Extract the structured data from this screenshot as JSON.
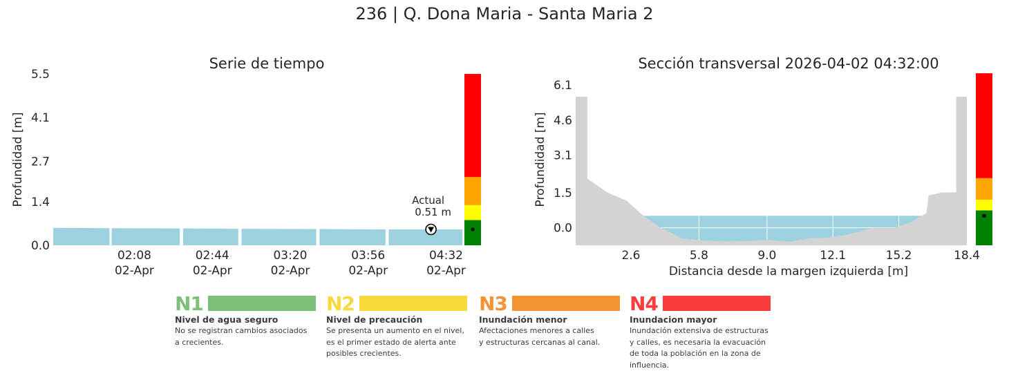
{
  "page_title": "236 | Q. Dona Maria - Santa Maria 2",
  "colors": {
    "water": "#9ed1e0",
    "ground": "#d3d3d3",
    "alert_red": "#ff0000",
    "alert_orange": "#ffa500",
    "alert_yellow": "#ffff00",
    "alert_green": "#008000"
  },
  "chart_data": [
    {
      "type": "area",
      "title": "Serie de tiempo",
      "ylabel": "Profundidad [m]",
      "xlabel": "",
      "ylim": [
        0,
        5.5
      ],
      "yticks": [
        "0.0",
        "1.4",
        "2.7",
        "4.1",
        "5.5"
      ],
      "ytick_values": [
        0.0,
        1.4,
        2.7,
        4.1,
        5.5
      ],
      "xlim_minutes": [
        90.5,
        279.5
      ],
      "xticks": [
        {
          "minute": 128,
          "time": "02:08",
          "date": "02-Apr"
        },
        {
          "minute": 164,
          "time": "02:44",
          "date": "02-Apr"
        },
        {
          "minute": 200,
          "time": "03:20",
          "date": "02-Apr"
        },
        {
          "minute": 236,
          "time": "03:56",
          "date": "02-Apr"
        },
        {
          "minute": 272,
          "time": "04:32",
          "date": "02-Apr"
        }
      ],
      "series": [
        {
          "x_minutes": [
            90.5,
            116.5
          ],
          "depth": [
            0.56,
            0.55
          ]
        },
        {
          "x_minutes": [
            117.5,
            149
          ],
          "depth": [
            0.55,
            0.54
          ]
        },
        {
          "x_minutes": [
            150.5,
            176
          ],
          "depth": [
            0.54,
            0.53
          ]
        },
        {
          "x_minutes": [
            177.5,
            212
          ],
          "depth": [
            0.53,
            0.52
          ]
        },
        {
          "x_minutes": [
            213.5,
            244
          ],
          "depth": [
            0.52,
            0.51
          ]
        },
        {
          "x_minutes": [
            245.5,
            279.5
          ],
          "depth": [
            0.51,
            0.51
          ]
        }
      ],
      "current": {
        "minute": 265,
        "depth": 0.51,
        "label": "Actual",
        "value_label": "0.51 m"
      },
      "alert_bar": [
        {
          "level": "green",
          "from": 0,
          "to": 0.81
        },
        {
          "level": "yellow",
          "from": 0.81,
          "to": 1.29
        },
        {
          "level": "orange",
          "from": 1.29,
          "to": 2.19
        },
        {
          "level": "red",
          "from": 2.19,
          "to": 5.5
        }
      ]
    },
    {
      "type": "area",
      "title": "Sección transversal 2026-04-02 04:32:00",
      "ylabel": "Profundidad [m]",
      "xlabel": "Distancia desde la margen izquierda [m]",
      "xlim": [
        0,
        18.4
      ],
      "ylim": [
        -0.75,
        6.6
      ],
      "xticks": [
        "2.6",
        "5.8",
        "9.0",
        "12.1",
        "15.2",
        "18.4"
      ],
      "xtick_values": [
        2.6,
        5.8,
        9.0,
        12.1,
        15.2,
        18.4
      ],
      "yticks": [
        "0.0",
        "1.5",
        "3.1",
        "4.6",
        "6.1"
      ],
      "ytick_values": [
        0.0,
        1.5,
        3.1,
        4.6,
        6.1
      ],
      "water_level": 0.51,
      "profile": [
        {
          "x": 0,
          "y": 5.6
        },
        {
          "x": 0.55,
          "y": 5.6
        },
        {
          "x": 0.55,
          "y": 2.1
        },
        {
          "x": 1.5,
          "y": 1.5
        },
        {
          "x": 2.4,
          "y": 1.15
        },
        {
          "x": 3.2,
          "y": 0.5
        },
        {
          "x": 4.0,
          "y": 0.0
        },
        {
          "x": 5.0,
          "y": -0.45
        },
        {
          "x": 6.0,
          "y": -0.55
        },
        {
          "x": 7.0,
          "y": -0.58
        },
        {
          "x": 8.0,
          "y": -0.57
        },
        {
          "x": 9.0,
          "y": -0.52
        },
        {
          "x": 10.0,
          "y": -0.6
        },
        {
          "x": 11.0,
          "y": -0.45
        },
        {
          "x": 12.0,
          "y": -0.42
        },
        {
          "x": 13.0,
          "y": -0.25
        },
        {
          "x": 14.0,
          "y": 0.0
        },
        {
          "x": 15.0,
          "y": 0.0
        },
        {
          "x": 15.8,
          "y": 0.25
        },
        {
          "x": 16.5,
          "y": 0.63
        },
        {
          "x": 16.6,
          "y": 1.38
        },
        {
          "x": 17.2,
          "y": 1.5
        },
        {
          "x": 17.9,
          "y": 1.52
        },
        {
          "x": 17.9,
          "y": 5.6
        },
        {
          "x": 18.4,
          "y": 5.6
        }
      ],
      "alert_bar": [
        {
          "level": "green",
          "from": -0.75,
          "to": 0.74
        },
        {
          "level": "yellow",
          "from": 0.74,
          "to": 1.2
        },
        {
          "level": "orange",
          "from": 1.2,
          "to": 2.12
        },
        {
          "level": "red",
          "from": 2.12,
          "to": 6.6
        }
      ],
      "current_depth": 0.51
    }
  ],
  "legend": [
    {
      "code": "N1",
      "color": "#7dc07a",
      "name": "Nivel de agua seguro",
      "lines": [
        "No se registran cambios asociados",
        "a crecientes."
      ]
    },
    {
      "code": "N2",
      "color": "#f7d93b",
      "name": "Nivel de precaución",
      "lines": [
        "Se presenta un aumento en el nivel,",
        "es el primer estado de alerta ante",
        "posibles crecientes."
      ]
    },
    {
      "code": "N3",
      "color": "#f39334",
      "name": "Inundación menor",
      "lines": [
        "Afectaciones menores a calles",
        "y estructuras cercanas al canal."
      ]
    },
    {
      "code": "N4",
      "color": "#f93d3a",
      "name": "Inundacion mayor",
      "lines": [
        "Inundación extensiva de estructuras",
        "y calles, es necesaria la evacuación",
        "de toda la población en la zona de",
        "influencia."
      ]
    }
  ]
}
